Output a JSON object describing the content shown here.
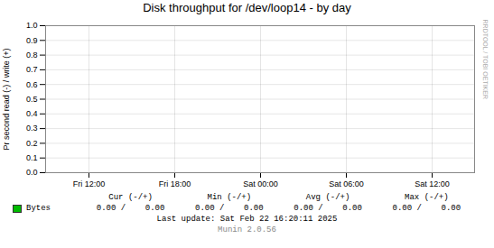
{
  "chart_data": {
    "type": "line",
    "title": "Disk throughput for /dev/loop14 - by day",
    "ylabel": "Pr second read (-) / write (+)",
    "categories": [
      "Fri 12:00",
      "Fri 18:00",
      "Sat 00:00",
      "Sat 06:00",
      "Sat 12:00"
    ],
    "series": [
      {
        "name": "Bytes",
        "color": "#00bb00",
        "values": [
          null,
          null,
          null,
          null,
          null
        ]
      }
    ],
    "ylim": [
      0.0,
      1.0
    ],
    "yticks": [
      {
        "value": 0,
        "label": "0.0"
      },
      0.1,
      0.2,
      0.3,
      0.4,
      0.5,
      0.6,
      0.7,
      0.8,
      0.9,
      {
        "value": 1,
        "label": "1.0"
      }
    ],
    "grid": true,
    "legend": "bottom",
    "stats_header": [
      "Cur (-/+)",
      "Min (-/+)",
      "Avg (-/+)",
      "Max (-/+)"
    ],
    "stats_values": [
      "0.00 /    0.00",
      "0.00 /    0.00",
      "0.00 /    0.00",
      "0.00 /    0.00"
    ],
    "footer": [
      "Last update: Sat Feb 22 16:20:11 2025",
      "Munin 2.0.56"
    ],
    "watermark": "RRDTOOL / TOBI OETIKER"
  }
}
